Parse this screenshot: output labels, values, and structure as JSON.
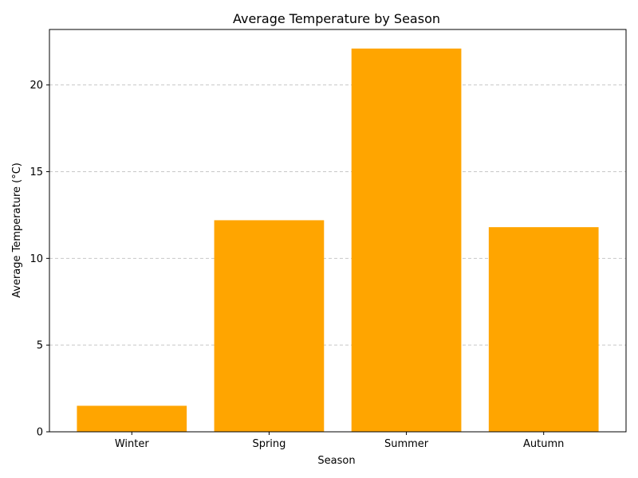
{
  "chart_data": {
    "type": "bar",
    "title": "Average Temperature by Season",
    "xlabel": "Season",
    "ylabel": "Average Temperature (°C)",
    "categories": [
      "Winter",
      "Spring",
      "Summer",
      "Autumn"
    ],
    "values": [
      1.5,
      12.2,
      22.1,
      11.8
    ],
    "ylim": [
      0,
      23.2
    ],
    "yticks": [
      0,
      5,
      10,
      15,
      20
    ],
    "bar_color": "#ffa500",
    "grid": {
      "axis": "y",
      "style": "dashed",
      "color": "#c8c8c8"
    }
  }
}
